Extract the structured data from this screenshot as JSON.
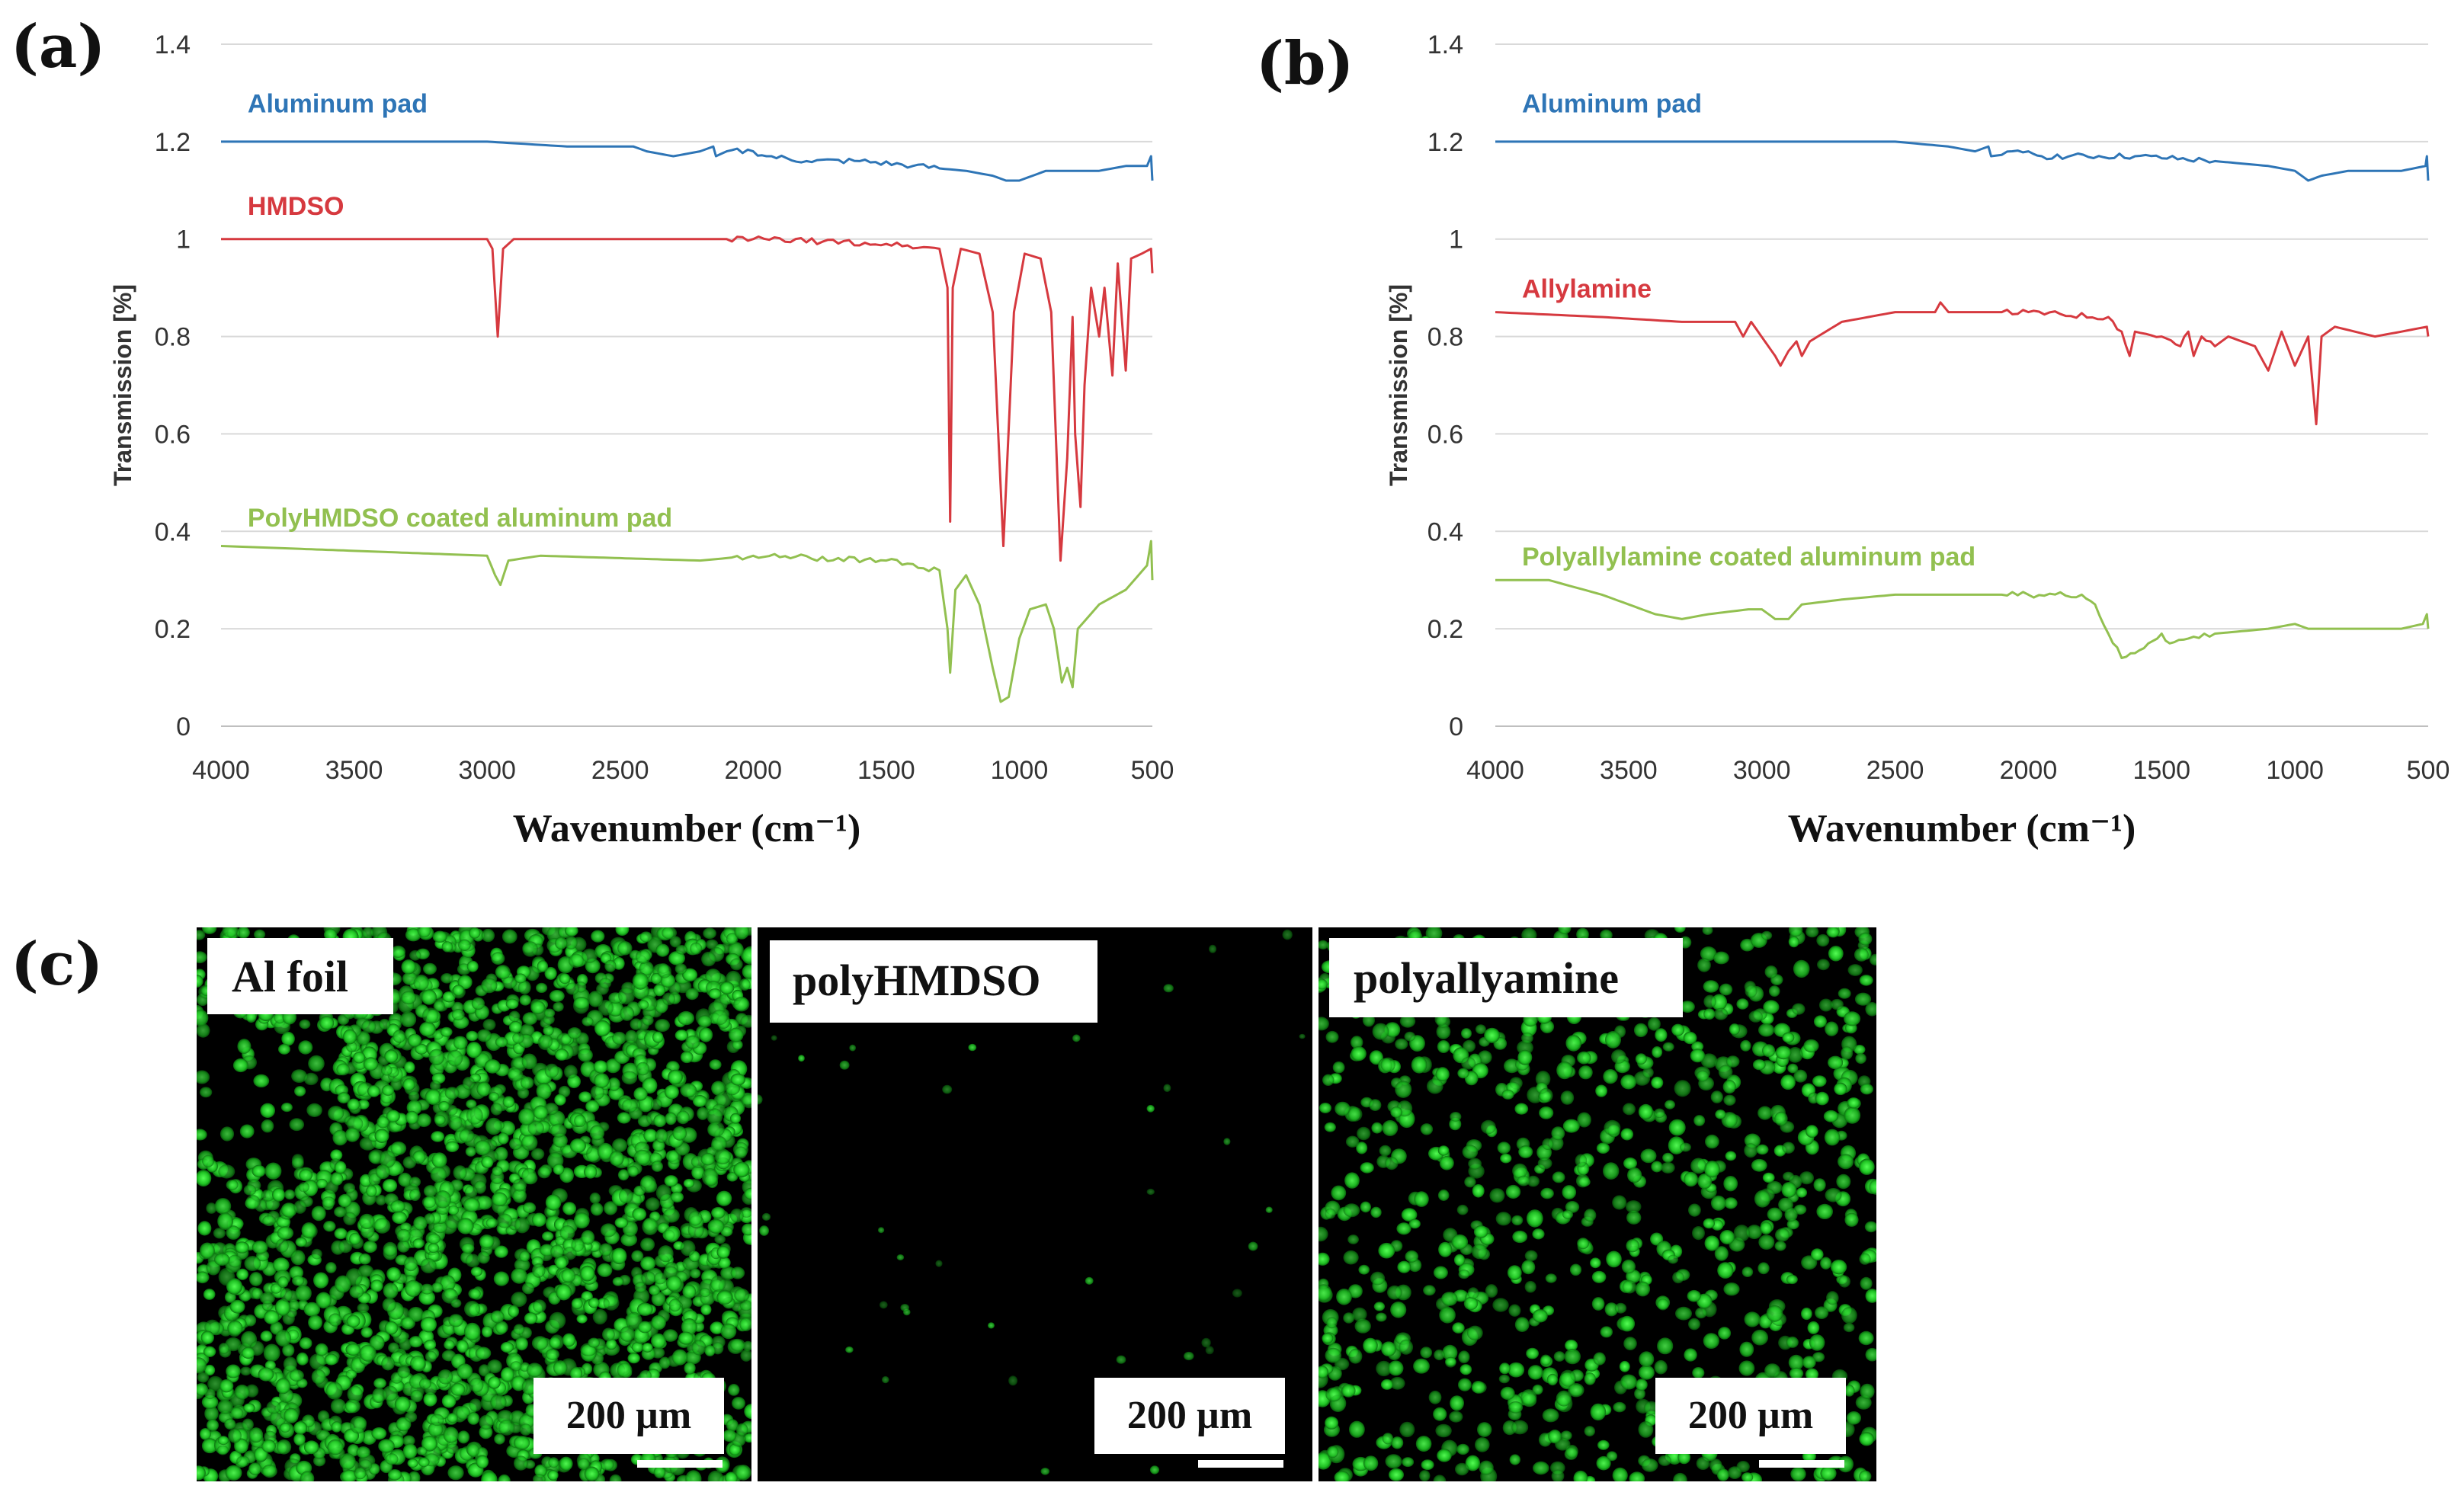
{
  "figure": {
    "panel_a": "(a)",
    "panel_b": "(b)",
    "panel_c": "(c)"
  },
  "colors": {
    "blue": "#2e75b6",
    "red": "#d6393f",
    "green": "#92c050",
    "grid": "#d9d9d9",
    "cells": "#22cc2a"
  },
  "chart_data": [
    {
      "id": "a",
      "type": "line",
      "title": "",
      "xlabel": "Wavenumber (cm⁻¹)",
      "ylabel": "Transmission [%]",
      "xlim": [
        4000,
        500
      ],
      "ylim": [
        0,
        1.4
      ],
      "x_ticks": [
        "4000",
        "3500",
        "3000",
        "2500",
        "2000",
        "1500",
        "1000",
        "500"
      ],
      "y_ticks": [
        "0",
        "0.2",
        "0.4",
        "0.6",
        "0.8",
        "1",
        "1.2",
        "1.4"
      ],
      "grid": true,
      "series": [
        {
          "name": "Aluminum pad",
          "color": "#2e75b6",
          "label_at": [
            3900,
            1.26
          ],
          "points": [
            [
              4000,
              1.2
            ],
            [
              3500,
              1.2
            ],
            [
              3000,
              1.2
            ],
            [
              2700,
              1.19
            ],
            [
              2450,
              1.19
            ],
            [
              2400,
              1.18
            ],
            [
              2300,
              1.17
            ],
            [
              2200,
              1.18
            ],
            [
              2150,
              1.19
            ],
            [
              2140,
              1.17
            ],
            [
              2100,
              1.18
            ],
            [
              2000,
              1.18
            ],
            [
              1950,
              1.17
            ],
            [
              1800,
              1.16
            ],
            [
              1600,
              1.16
            ],
            [
              1400,
              1.15
            ],
            [
              1200,
              1.14
            ],
            [
              1100,
              1.13
            ],
            [
              1050,
              1.12
            ],
            [
              1000,
              1.12
            ],
            [
              950,
              1.13
            ],
            [
              900,
              1.14
            ],
            [
              800,
              1.14
            ],
            [
              700,
              1.14
            ],
            [
              600,
              1.15
            ],
            [
              520,
              1.15
            ],
            [
              505,
              1.17
            ],
            [
              500,
              1.12
            ]
          ]
        },
        {
          "name": "HMDSO",
          "color": "#d6393f",
          "label_at": [
            3900,
            1.05
          ],
          "points": [
            [
              4000,
              1.0
            ],
            [
              3500,
              1.0
            ],
            [
              3000,
              1.0
            ],
            [
              2980,
              0.98
            ],
            [
              2960,
              0.8
            ],
            [
              2940,
              0.98
            ],
            [
              2900,
              1.0
            ],
            [
              2000,
              1.0
            ],
            [
              1500,
              0.99
            ],
            [
              1300,
              0.98
            ],
            [
              1270,
              0.9
            ],
            [
              1260,
              0.42
            ],
            [
              1250,
              0.9
            ],
            [
              1220,
              0.98
            ],
            [
              1150,
              0.97
            ],
            [
              1100,
              0.85
            ],
            [
              1060,
              0.37
            ],
            [
              1020,
              0.85
            ],
            [
              980,
              0.97
            ],
            [
              920,
              0.96
            ],
            [
              880,
              0.85
            ],
            [
              845,
              0.34
            ],
            [
              820,
              0.55
            ],
            [
              800,
              0.84
            ],
            [
              790,
              0.6
            ],
            [
              770,
              0.45
            ],
            [
              755,
              0.7
            ],
            [
              730,
              0.9
            ],
            [
              700,
              0.8
            ],
            [
              680,
              0.9
            ],
            [
              650,
              0.72
            ],
            [
              630,
              0.95
            ],
            [
              600,
              0.73
            ],
            [
              580,
              0.96
            ],
            [
              540,
              0.97
            ],
            [
              505,
              0.98
            ],
            [
              500,
              0.93
            ]
          ]
        },
        {
          "name": "PolyHMDSO coated aluminum pad",
          "color": "#92c050",
          "label_at": [
            3900,
            0.41
          ],
          "points": [
            [
              4000,
              0.37
            ],
            [
              3500,
              0.36
            ],
            [
              3000,
              0.35
            ],
            [
              2970,
              0.31
            ],
            [
              2950,
              0.29
            ],
            [
              2920,
              0.34
            ],
            [
              2800,
              0.35
            ],
            [
              2200,
              0.34
            ],
            [
              2000,
              0.35
            ],
            [
              1500,
              0.34
            ],
            [
              1300,
              0.32
            ],
            [
              1270,
              0.2
            ],
            [
              1260,
              0.11
            ],
            [
              1240,
              0.28
            ],
            [
              1200,
              0.31
            ],
            [
              1150,
              0.25
            ],
            [
              1100,
              0.12
            ],
            [
              1070,
              0.05
            ],
            [
              1040,
              0.06
            ],
            [
              1000,
              0.18
            ],
            [
              960,
              0.24
            ],
            [
              900,
              0.25
            ],
            [
              870,
              0.2
            ],
            [
              840,
              0.09
            ],
            [
              820,
              0.12
            ],
            [
              800,
              0.08
            ],
            [
              780,
              0.2
            ],
            [
              700,
              0.25
            ],
            [
              600,
              0.28
            ],
            [
              520,
              0.33
            ],
            [
              505,
              0.38
            ],
            [
              500,
              0.3
            ]
          ]
        }
      ]
    },
    {
      "id": "b",
      "type": "line",
      "title": "",
      "xlabel": "Wavenumber (cm⁻¹)",
      "ylabel": "Transmission [%]",
      "xlim": [
        4000,
        500
      ],
      "ylim": [
        0,
        1.4
      ],
      "x_ticks": [
        "4000",
        "3500",
        "3000",
        "2500",
        "2000",
        "1500",
        "1000",
        "500"
      ],
      "y_ticks": [
        "0",
        "0.2",
        "0.4",
        "0.6",
        "0.8",
        "1",
        "1.2",
        "1.4"
      ],
      "grid": true,
      "series": [
        {
          "name": "Aluminum pad",
          "color": "#2e75b6",
          "label_at": [
            3900,
            1.26
          ],
          "points": [
            [
              4000,
              1.2
            ],
            [
              3000,
              1.2
            ],
            [
              2500,
              1.2
            ],
            [
              2300,
              1.19
            ],
            [
              2200,
              1.18
            ],
            [
              2150,
              1.19
            ],
            [
              2140,
              1.17
            ],
            [
              2000,
              1.18
            ],
            [
              1950,
              1.17
            ],
            [
              1600,
              1.17
            ],
            [
              1300,
              1.16
            ],
            [
              1100,
              1.15
            ],
            [
              1000,
              1.14
            ],
            [
              950,
              1.12
            ],
            [
              900,
              1.13
            ],
            [
              800,
              1.14
            ],
            [
              600,
              1.14
            ],
            [
              510,
              1.15
            ],
            [
              505,
              1.17
            ],
            [
              500,
              1.12
            ]
          ]
        },
        {
          "name": "Allylamine",
          "color": "#d6393f",
          "label_at": [
            3900,
            0.88
          ],
          "points": [
            [
              4000,
              0.85
            ],
            [
              3600,
              0.84
            ],
            [
              3300,
              0.83
            ],
            [
              3100,
              0.83
            ],
            [
              3070,
              0.8
            ],
            [
              3040,
              0.83
            ],
            [
              2950,
              0.76
            ],
            [
              2930,
              0.74
            ],
            [
              2900,
              0.77
            ],
            [
              2870,
              0.79
            ],
            [
              2850,
              0.76
            ],
            [
              2820,
              0.79
            ],
            [
              2700,
              0.83
            ],
            [
              2500,
              0.85
            ],
            [
              2350,
              0.85
            ],
            [
              2330,
              0.87
            ],
            [
              2300,
              0.85
            ],
            [
              2000,
              0.85
            ],
            [
              1700,
              0.84
            ],
            [
              1650,
              0.81
            ],
            [
              1620,
              0.76
            ],
            [
              1600,
              0.81
            ],
            [
              1500,
              0.8
            ],
            [
              1430,
              0.78
            ],
            [
              1400,
              0.81
            ],
            [
              1380,
              0.76
            ],
            [
              1350,
              0.8
            ],
            [
              1300,
              0.78
            ],
            [
              1250,
              0.8
            ],
            [
              1150,
              0.78
            ],
            [
              1100,
              0.73
            ],
            [
              1050,
              0.81
            ],
            [
              1000,
              0.74
            ],
            [
              950,
              0.8
            ],
            [
              920,
              0.62
            ],
            [
              900,
              0.8
            ],
            [
              850,
              0.82
            ],
            [
              700,
              0.8
            ],
            [
              600,
              0.81
            ],
            [
              505,
              0.82
            ],
            [
              500,
              0.8
            ]
          ]
        },
        {
          "name": "Polyallylamine coated aluminum pad",
          "color": "#92c050",
          "label_at": [
            3900,
            0.33
          ],
          "points": [
            [
              4000,
              0.3
            ],
            [
              3800,
              0.3
            ],
            [
              3600,
              0.27
            ],
            [
              3400,
              0.23
            ],
            [
              3300,
              0.22
            ],
            [
              3200,
              0.23
            ],
            [
              3050,
              0.24
            ],
            [
              3000,
              0.24
            ],
            [
              2950,
              0.22
            ],
            [
              2900,
              0.22
            ],
            [
              2850,
              0.25
            ],
            [
              2700,
              0.26
            ],
            [
              2500,
              0.27
            ],
            [
              2200,
              0.27
            ],
            [
              2000,
              0.27
            ],
            [
              1800,
              0.27
            ],
            [
              1750,
              0.25
            ],
            [
              1700,
              0.19
            ],
            [
              1650,
              0.14
            ],
            [
              1600,
              0.15
            ],
            [
              1550,
              0.17
            ],
            [
              1500,
              0.19
            ],
            [
              1470,
              0.17
            ],
            [
              1400,
              0.18
            ],
            [
              1300,
              0.19
            ],
            [
              1100,
              0.2
            ],
            [
              1000,
              0.21
            ],
            [
              950,
              0.2
            ],
            [
              800,
              0.2
            ],
            [
              600,
              0.2
            ],
            [
              520,
              0.21
            ],
            [
              505,
              0.23
            ],
            [
              500,
              0.2
            ]
          ]
        }
      ]
    }
  ],
  "images": [
    {
      "label": "Al foil",
      "scale": "200 µm",
      "density": "high"
    },
    {
      "label": "polyHMDSO",
      "scale": "200 µm",
      "density": "low"
    },
    {
      "label": "polyallyamine",
      "scale": "200 µm",
      "density": "medium"
    }
  ]
}
